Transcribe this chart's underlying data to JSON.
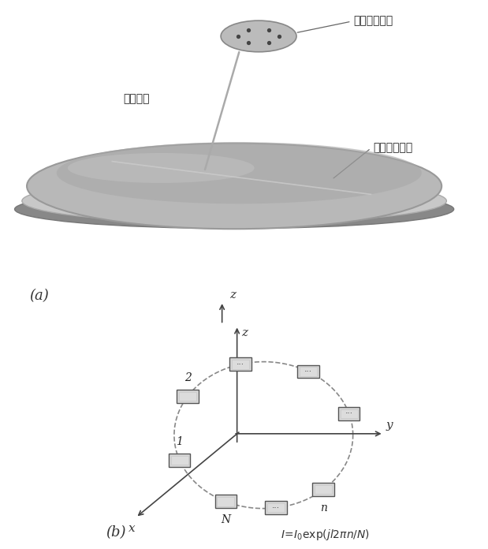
{
  "fig_width": 6.19,
  "fig_height": 6.96,
  "bg_color": "#ffffff",
  "label_a": "(a)",
  "label_b": "(b)",
  "chinese_feed": "贴片阵列馈源",
  "chinese_support": "支撑机构",
  "chinese_reflector": "抛物面反射器",
  "formula": "$I=I_0exp(jl2\\pi n/N)$",
  "axis_color": "#444444",
  "element_facecolor": "#d8d8d8",
  "element_edgecolor": "#555555",
  "dish_top_color": "#b5b5b5",
  "dish_rim_color": "#c8c8c8",
  "dish_bottom_color": "#999999",
  "dish_edge_color": "#888888",
  "feed_color": "#bbbbbb",
  "support_color": "#aaaaaa",
  "circle_color": "#888888"
}
